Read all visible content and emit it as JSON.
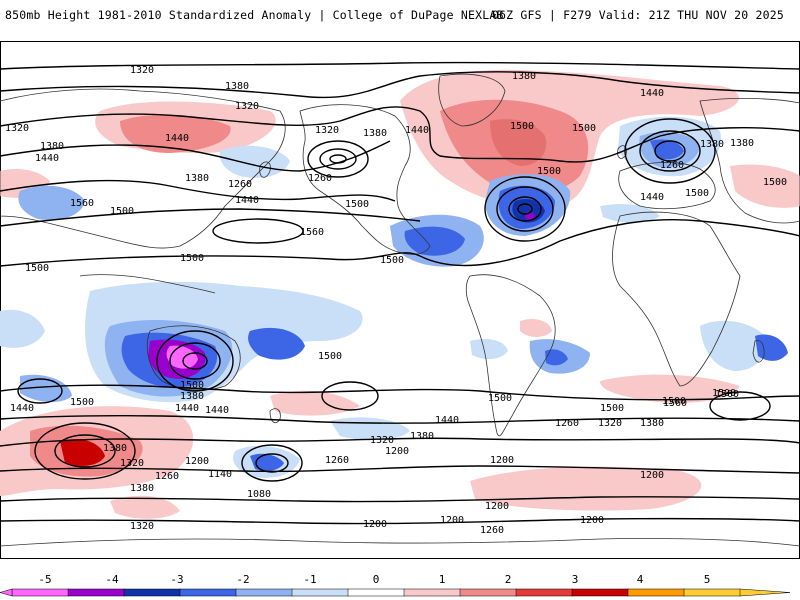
{
  "header": {
    "title": "850mb Height 1981-2010 Standardized Anomaly | College of DuPage NEXLAB",
    "run_info": "06Z GFS | F279 Valid: 21Z THU NOV 20 2025"
  },
  "colorbar": {
    "ticks": [
      "-5",
      "-4",
      "-3",
      "-2",
      "-1",
      "0",
      "1",
      "2",
      "3",
      "4",
      "5"
    ],
    "colors": [
      "#ff66ff",
      "#9900cc",
      "#1133aa",
      "#3d66e6",
      "#8fb3f0",
      "#c9def7",
      "#ffffff",
      "#f9c8c8",
      "#f08a8a",
      "#e53a3a",
      "#c80000",
      "#ff9a00",
      "#ffcc33"
    ]
  },
  "contour_labels": {
    "top": [
      "1320",
      "1380",
      "1320",
      "1380",
      "1320",
      "1380",
      "1440",
      "1440",
      "1500",
      "1380",
      "1500",
      "1320",
      "1440"
    ],
    "north_mid": [
      "1380",
      "1440",
      "1380",
      "1260",
      "1440",
      "1500",
      "1500",
      "1560",
      "1440",
      "1500",
      "1500",
      "1260",
      "1260",
      "1380",
      "1500",
      "1560",
      "1500",
      "1500",
      "1500"
    ],
    "tropics": [
      "1500",
      "1500",
      "1500",
      "1500",
      "1500"
    ],
    "south": [
      "1440",
      "1500",
      "1380",
      "1440",
      "1440",
      "1440",
      "1500",
      "1560",
      "1500",
      "1380",
      "1320",
      "1380",
      "1380",
      "1320",
      "1260",
      "1320",
      "1380",
      "1260",
      "1200",
      "1140",
      "1080",
      "1200",
      "1260",
      "1200",
      "1200",
      "1200",
      "1200",
      "1260",
      "1200",
      "1200",
      "1320"
    ]
  }
}
